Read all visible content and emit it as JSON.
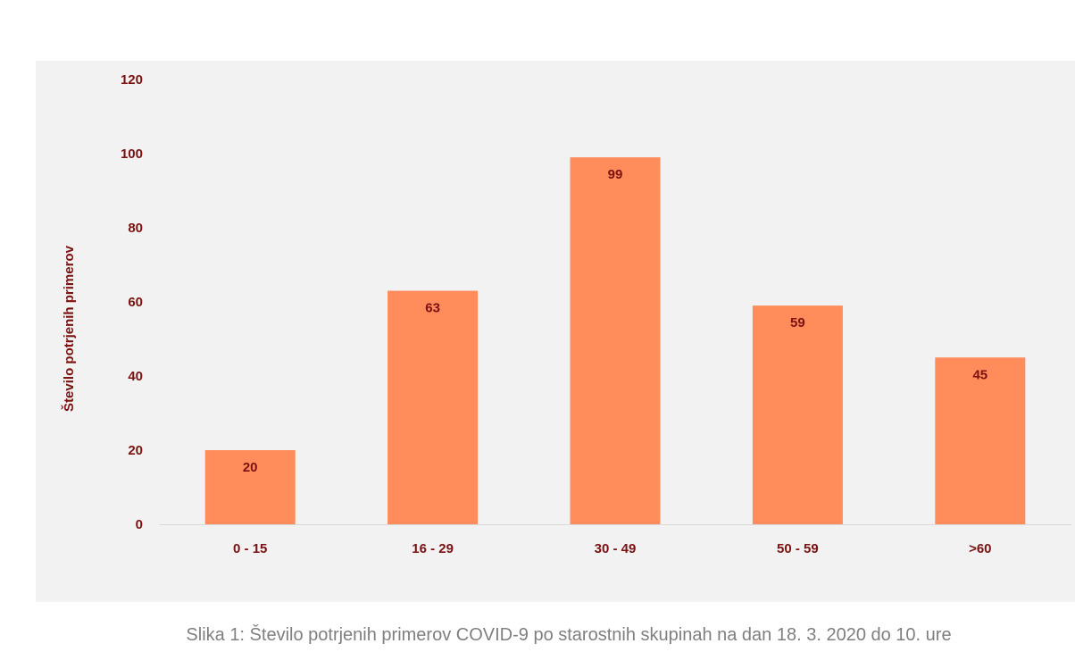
{
  "chart_data": {
    "type": "bar",
    "categories": [
      "0 - 15",
      "16 - 29",
      "30 - 49",
      "50 - 59",
      ">60"
    ],
    "values": [
      20,
      63,
      99,
      59,
      45
    ],
    "ylabel": "Število potrjenih primerov",
    "xlabel": "",
    "ylim": [
      0,
      120
    ],
    "yticks": [
      0,
      20,
      40,
      60,
      80,
      100,
      120
    ],
    "grid": false,
    "bar_color": "#ff8c5a",
    "label_color": "#7b1111"
  },
  "caption": "Slika 1: Število potrjenih primerov COVID-9 po starostnih skupinah na dan 18. 3. 2020 do 10. ure"
}
